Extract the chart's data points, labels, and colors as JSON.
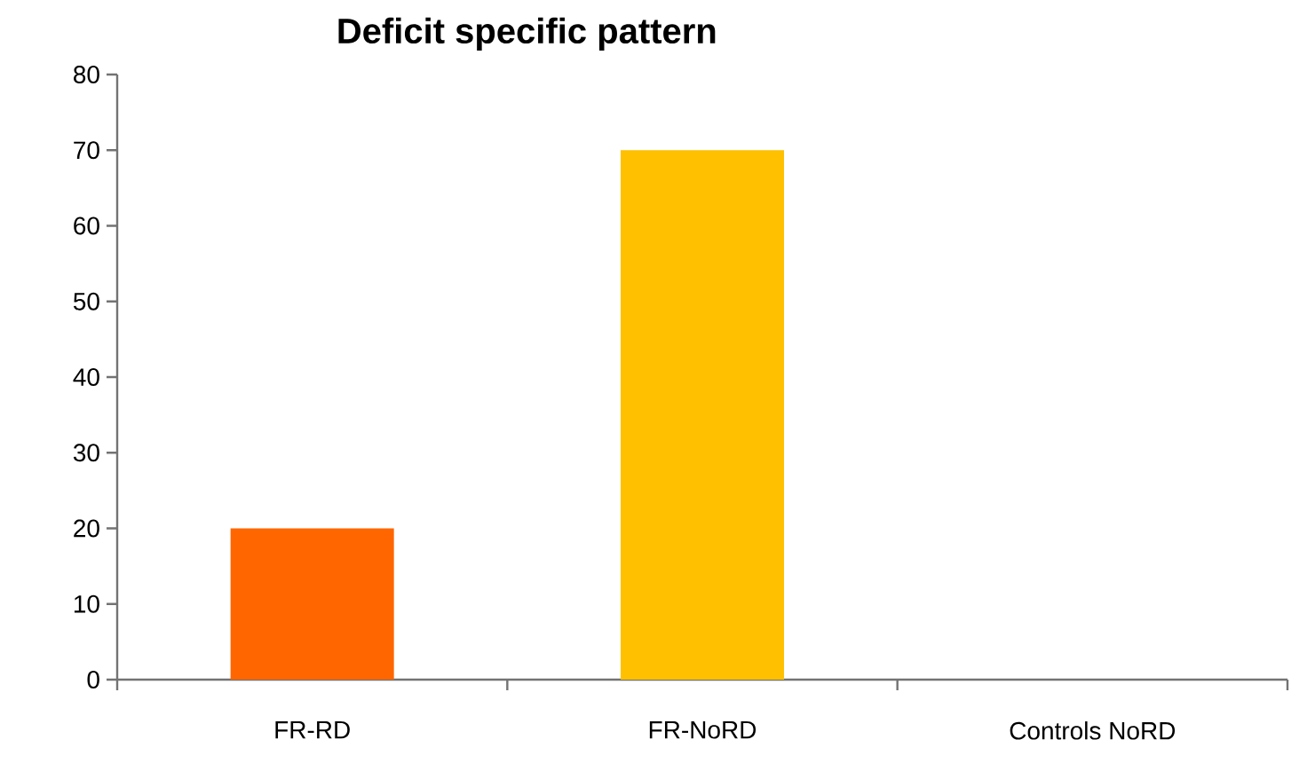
{
  "chart_data": {
    "type": "bar",
    "title": "Deficit specific pattern",
    "categories": [
      "FR-RD",
      "FR-NoRD",
      "Controls NoRD"
    ],
    "values": [
      20,
      70,
      0
    ],
    "colors": [
      "#ff6600",
      "#ffc000",
      "#ffc000"
    ],
    "ylim": [
      0,
      80
    ],
    "yticks": [
      0,
      10,
      20,
      30,
      40,
      50,
      60,
      70,
      80
    ]
  }
}
